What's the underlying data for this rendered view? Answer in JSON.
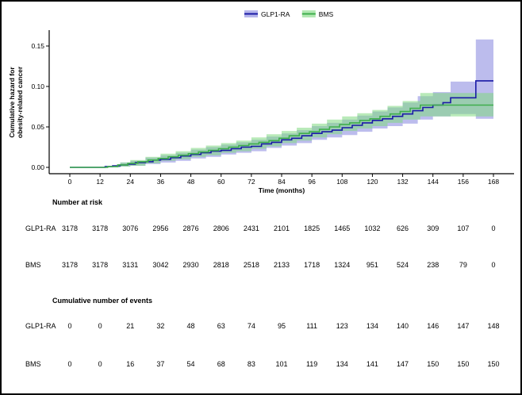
{
  "chart_data": {
    "type": "line",
    "subtype": "step-cumulative-hazard",
    "title": "",
    "xlabel": "Time (months)",
    "ylabel_line1": "Cumulative hazard for",
    "ylabel_line2": "obesity-related cancer",
    "xlim": [
      0,
      168
    ],
    "ylim": [
      0,
      0.16
    ],
    "xticks": [
      0,
      12,
      24,
      36,
      48,
      60,
      72,
      84,
      96,
      108,
      120,
      132,
      144,
      156,
      168
    ],
    "yticks": [
      "0.00",
      "0.05",
      "0.10",
      "0.15"
    ],
    "ytick_values": [
      0,
      0.05,
      0.1,
      0.15
    ],
    "grid": false,
    "legend_position": "top-center",
    "series": [
      {
        "name": "GLP1-RA",
        "line_color": "#1a1aa6",
        "band_color": "#8585de",
        "band_opacity": 0.55,
        "steps": [
          [
            0,
            0
          ],
          [
            14,
            0.001
          ],
          [
            17,
            0.002
          ],
          [
            20,
            0.003
          ],
          [
            23,
            0.004
          ],
          [
            26,
            0.006
          ],
          [
            30,
            0.007
          ],
          [
            33,
            0.009
          ],
          [
            36,
            0.01
          ],
          [
            40,
            0.012
          ],
          [
            44,
            0.014
          ],
          [
            48,
            0.016
          ],
          [
            52,
            0.018
          ],
          [
            56,
            0.02
          ],
          [
            60,
            0.021
          ],
          [
            64,
            0.023
          ],
          [
            68,
            0.025
          ],
          [
            72,
            0.026
          ],
          [
            76,
            0.029
          ],
          [
            80,
            0.031
          ],
          [
            84,
            0.034
          ],
          [
            88,
            0.036
          ],
          [
            92,
            0.039
          ],
          [
            96,
            0.042
          ],
          [
            100,
            0.044
          ],
          [
            104,
            0.046
          ],
          [
            108,
            0.049
          ],
          [
            112,
            0.052
          ],
          [
            116,
            0.055
          ],
          [
            120,
            0.058
          ],
          [
            124,
            0.06
          ],
          [
            128,
            0.063
          ],
          [
            132,
            0.066
          ],
          [
            136,
            0.07
          ],
          [
            140,
            0.074
          ],
          [
            144,
            0.077
          ],
          [
            148,
            0.08
          ],
          [
            151,
            0.086
          ],
          [
            161,
            0.107
          ],
          [
            168,
            0.107
          ]
        ],
        "band": [
          [
            0,
            0,
            0
          ],
          [
            14,
            0,
            0.002
          ],
          [
            20,
            0.001,
            0.006
          ],
          [
            24,
            0.002,
            0.008
          ],
          [
            30,
            0.004,
            0.012
          ],
          [
            36,
            0.006,
            0.015
          ],
          [
            42,
            0.008,
            0.018
          ],
          [
            48,
            0.011,
            0.022
          ],
          [
            54,
            0.013,
            0.025
          ],
          [
            60,
            0.016,
            0.028
          ],
          [
            66,
            0.018,
            0.031
          ],
          [
            72,
            0.02,
            0.034
          ],
          [
            78,
            0.024,
            0.038
          ],
          [
            84,
            0.027,
            0.042
          ],
          [
            90,
            0.03,
            0.046
          ],
          [
            96,
            0.034,
            0.051
          ],
          [
            102,
            0.037,
            0.055
          ],
          [
            108,
            0.04,
            0.059
          ],
          [
            114,
            0.044,
            0.064
          ],
          [
            120,
            0.048,
            0.069
          ],
          [
            126,
            0.051,
            0.074
          ],
          [
            132,
            0.054,
            0.08
          ],
          [
            138,
            0.059,
            0.088
          ],
          [
            144,
            0.063,
            0.093
          ],
          [
            151,
            0.066,
            0.106
          ],
          [
            161,
            0.06,
            0.158
          ],
          [
            168,
            0.06,
            0.158
          ]
        ]
      },
      {
        "name": "BMS",
        "line_color": "#3fae4c",
        "band_color": "#7fd87f",
        "band_opacity": 0.55,
        "steps": [
          [
            0,
            0
          ],
          [
            15,
            0.001
          ],
          [
            19,
            0.003
          ],
          [
            23,
            0.005
          ],
          [
            27,
            0.007
          ],
          [
            31,
            0.009
          ],
          [
            35,
            0.011
          ],
          [
            39,
            0.013
          ],
          [
            43,
            0.015
          ],
          [
            47,
            0.017
          ],
          [
            51,
            0.019
          ],
          [
            55,
            0.021
          ],
          [
            59,
            0.023
          ],
          [
            63,
            0.025
          ],
          [
            67,
            0.027
          ],
          [
            71,
            0.029
          ],
          [
            75,
            0.031
          ],
          [
            79,
            0.033
          ],
          [
            83,
            0.036
          ],
          [
            87,
            0.039
          ],
          [
            91,
            0.042
          ],
          [
            95,
            0.044
          ],
          [
            99,
            0.047
          ],
          [
            103,
            0.05
          ],
          [
            107,
            0.053
          ],
          [
            111,
            0.055
          ],
          [
            115,
            0.058
          ],
          [
            119,
            0.06
          ],
          [
            123,
            0.063
          ],
          [
            127,
            0.066
          ],
          [
            131,
            0.069
          ],
          [
            135,
            0.073
          ],
          [
            139,
            0.077
          ],
          [
            168,
            0.077
          ]
        ],
        "band": [
          [
            0,
            0,
            0
          ],
          [
            15,
            0,
            0.002
          ],
          [
            20,
            0.001,
            0.006
          ],
          [
            24,
            0.002,
            0.009
          ],
          [
            30,
            0.005,
            0.013
          ],
          [
            36,
            0.008,
            0.017
          ],
          [
            42,
            0.01,
            0.02
          ],
          [
            48,
            0.013,
            0.024
          ],
          [
            54,
            0.015,
            0.027
          ],
          [
            60,
            0.018,
            0.03
          ],
          [
            66,
            0.02,
            0.033
          ],
          [
            72,
            0.023,
            0.037
          ],
          [
            78,
            0.026,
            0.041
          ],
          [
            84,
            0.03,
            0.045
          ],
          [
            90,
            0.033,
            0.049
          ],
          [
            96,
            0.037,
            0.054
          ],
          [
            102,
            0.041,
            0.059
          ],
          [
            108,
            0.045,
            0.063
          ],
          [
            114,
            0.048,
            0.067
          ],
          [
            120,
            0.051,
            0.071
          ],
          [
            126,
            0.055,
            0.076
          ],
          [
            132,
            0.059,
            0.082
          ],
          [
            139,
            0.063,
            0.092
          ],
          [
            168,
            0.063,
            0.092
          ]
        ]
      }
    ],
    "risk_table": {
      "at_risk_header": "Number at risk",
      "events_header": "Cumulative number of events",
      "times": [
        0,
        12,
        24,
        36,
        48,
        60,
        72,
        84,
        96,
        108,
        120,
        132,
        144,
        156,
        168
      ],
      "at_risk": [
        {
          "label": "GLP1-RA",
          "values": [
            3178,
            3178,
            3076,
            2956,
            2876,
            2806,
            2431,
            2101,
            1825,
            1465,
            1032,
            626,
            309,
            107,
            0
          ]
        },
        {
          "label": "BMS",
          "values": [
            3178,
            3178,
            3131,
            3042,
            2930,
            2818,
            2518,
            2133,
            1718,
            1324,
            951,
            524,
            238,
            79,
            0
          ]
        }
      ],
      "events": [
        {
          "label": "GLP1-RA",
          "values": [
            0,
            0,
            21,
            32,
            48,
            63,
            74,
            95,
            111,
            123,
            134,
            140,
            146,
            147,
            148
          ]
        },
        {
          "label": "BMS",
          "values": [
            0,
            0,
            16,
            37,
            54,
            68,
            83,
            101,
            119,
            134,
            141,
            147,
            150,
            150,
            150
          ]
        }
      ]
    }
  }
}
